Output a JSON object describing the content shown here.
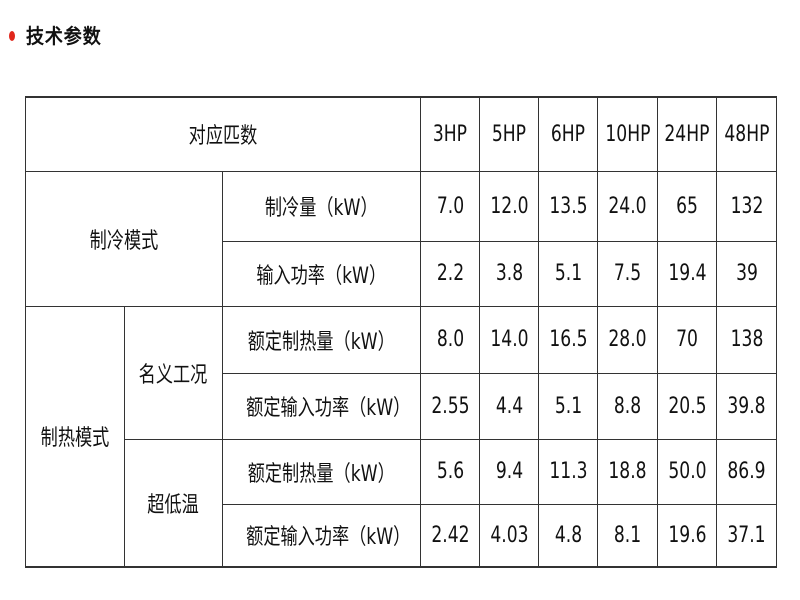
{
  "section": {
    "title": "技术参数",
    "bullet_color": "#e0261b"
  },
  "table": {
    "header": {
      "label": "对应匹数",
      "models": [
        "3HP",
        "5HP",
        "6HP",
        "10HP",
        "24HP",
        "48HP"
      ]
    },
    "cooling": {
      "mode": "制冷模式",
      "rows": [
        {
          "label": "制冷量（kW）",
          "values": [
            "7.0",
            "12.0",
            "13.5",
            "24.0",
            "65",
            "132"
          ]
        },
        {
          "label": "输入功率（kW）",
          "values": [
            "2.2",
            "3.8",
            "5.1",
            "7.5",
            "19.4",
            "39"
          ]
        }
      ]
    },
    "heating": {
      "mode": "制热模式",
      "groups": [
        {
          "condition": "名义工况",
          "rows": [
            {
              "label": "额定制热量（kW）",
              "values": [
                "8.0",
                "14.0",
                "16.5",
                "28.0",
                "70",
                "138"
              ]
            },
            {
              "label": "额定输入功率（kW）",
              "values": [
                "2.55",
                "4.4",
                "5.1",
                "8.8",
                "20.5",
                "39.8"
              ]
            }
          ]
        },
        {
          "condition": "超低温",
          "rows": [
            {
              "label": "额定制热量（kW）",
              "values": [
                "5.6",
                "9.4",
                "11.3",
                "18.8",
                "50.0",
                "86.9"
              ]
            },
            {
              "label": "额定输入功率（kW）",
              "values": [
                "2.42",
                "4.03",
                "4.8",
                "8.1",
                "19.6",
                "37.1"
              ]
            }
          ]
        }
      ]
    }
  }
}
